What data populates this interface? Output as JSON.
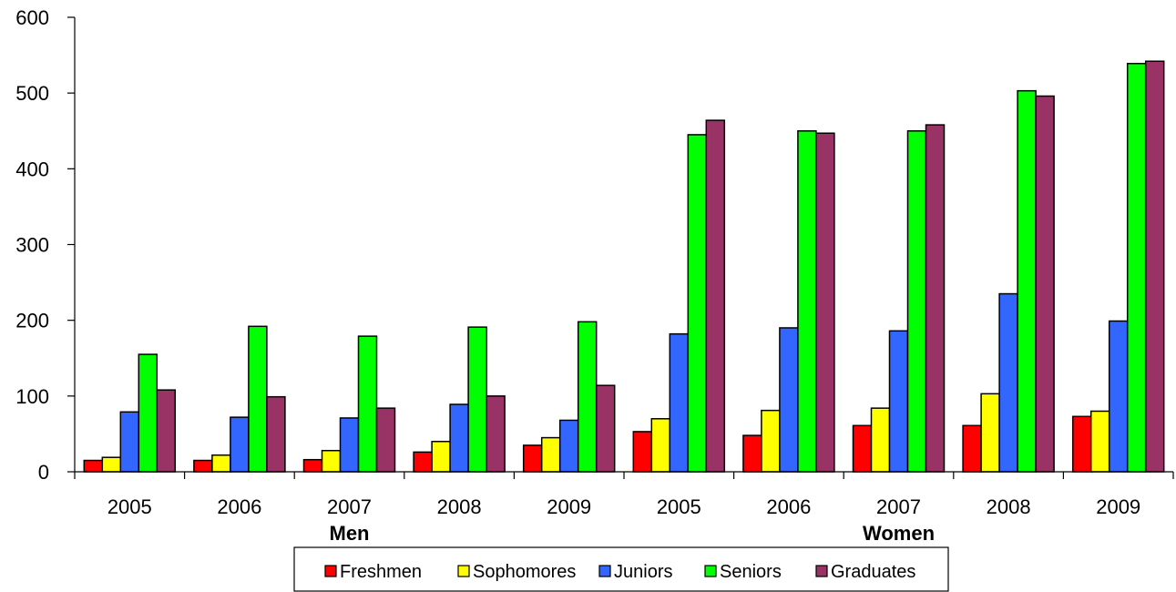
{
  "chart_data": {
    "type": "bar",
    "title": "",
    "xlabel": "",
    "ylabel": "",
    "ylim": [
      0,
      600
    ],
    "yticks": [
      0,
      100,
      200,
      300,
      400,
      500,
      600
    ],
    "grid": false,
    "legend_position": "bottom",
    "groups": [
      {
        "label": "Men",
        "categories": [
          "2005",
          "2006",
          "2007",
          "2008",
          "2009"
        ]
      },
      {
        "label": "Women",
        "categories": [
          "2005",
          "2006",
          "2007",
          "2008",
          "2009"
        ]
      }
    ],
    "categories": [
      "2005",
      "2006",
      "2007",
      "2008",
      "2009",
      "2005",
      "2006",
      "2007",
      "2008",
      "2009"
    ],
    "series": [
      {
        "name": "Freshmen",
        "color": "#ff0000",
        "values": [
          15,
          15,
          16,
          26,
          35,
          53,
          48,
          61,
          61,
          73
        ]
      },
      {
        "name": "Sophomores",
        "color": "#ffff00",
        "values": [
          19,
          22,
          28,
          40,
          45,
          70,
          81,
          84,
          103,
          80
        ]
      },
      {
        "name": "Juniors",
        "color": "#3366ff",
        "values": [
          79,
          72,
          71,
          89,
          68,
          182,
          190,
          186,
          235,
          199
        ]
      },
      {
        "name": "Seniors",
        "color": "#00ff00",
        "values": [
          155,
          192,
          179,
          191,
          198,
          445,
          450,
          450,
          503,
          539
        ]
      },
      {
        "name": "Graduates",
        "color": "#993366",
        "values": [
          108,
          99,
          84,
          100,
          114,
          464,
          447,
          458,
          496,
          542
        ]
      }
    ]
  }
}
